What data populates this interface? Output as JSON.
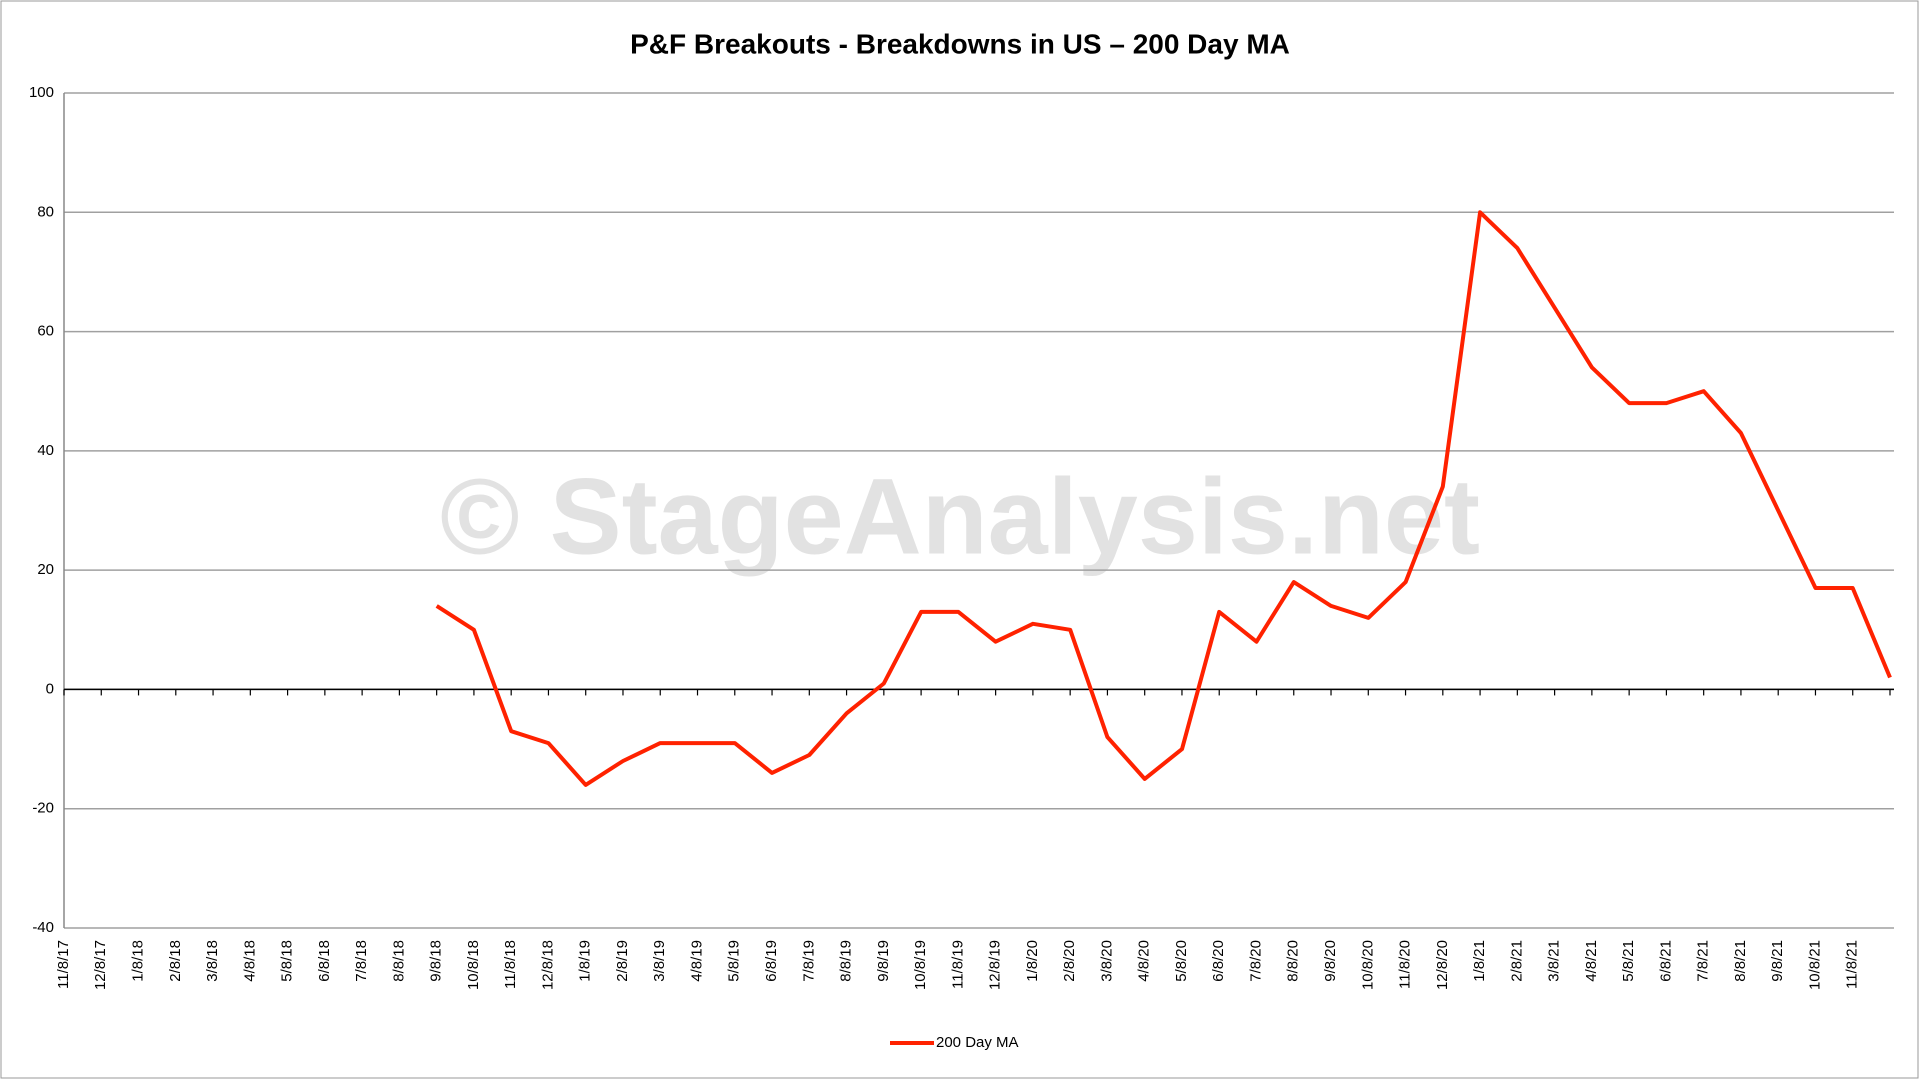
{
  "chart_data": {
    "type": "line",
    "title": "P&F Breakouts - Breakdowns in US – 200 Day MA",
    "watermark": "© StageAnalysis.net",
    "categories": [
      "11/8/17",
      "12/8/17",
      "1/8/18",
      "2/8/18",
      "3/8/18",
      "4/8/18",
      "5/8/18",
      "6/8/18",
      "7/8/18",
      "8/8/18",
      "9/8/18",
      "10/8/18",
      "11/8/18",
      "12/8/18",
      "1/8/19",
      "2/8/19",
      "3/8/19",
      "4/8/19",
      "5/8/19",
      "6/8/19",
      "7/8/19",
      "8/8/19",
      "9/8/19",
      "10/8/19",
      "11/8/19",
      "12/8/19",
      "1/8/20",
      "2/8/20",
      "3/8/20",
      "4/8/20",
      "5/8/20",
      "6/8/20",
      "7/8/20",
      "8/8/20",
      "9/8/20",
      "10/8/20",
      "11/8/20",
      "12/8/20",
      "1/8/21",
      "2/8/21",
      "3/8/21",
      "4/8/21",
      "5/8/21",
      "6/8/21",
      "7/8/21",
      "8/8/21",
      "9/8/21",
      "10/8/21",
      "11/8/21",
      null
    ],
    "series": [
      {
        "name": "200 Day MA",
        "color": "#ff2200",
        "values": [
          null,
          null,
          null,
          null,
          null,
          null,
          null,
          null,
          null,
          null,
          14,
          10,
          -7,
          -9,
          -16,
          -12,
          -9,
          -9,
          -9,
          -14,
          -11,
          -4,
          1,
          13,
          13,
          8,
          11,
          10,
          -8,
          -15,
          -10,
          13,
          8,
          18,
          14,
          12,
          18,
          34,
          80,
          74,
          64,
          54,
          48,
          48,
          50,
          43,
          30,
          17,
          17,
          2
        ]
      }
    ],
    "ylim": [
      -40,
      100
    ],
    "yticks": [
      -40,
      -20,
      0,
      20,
      40,
      60,
      80,
      100
    ],
    "grid": true,
    "legend": "bottom"
  }
}
